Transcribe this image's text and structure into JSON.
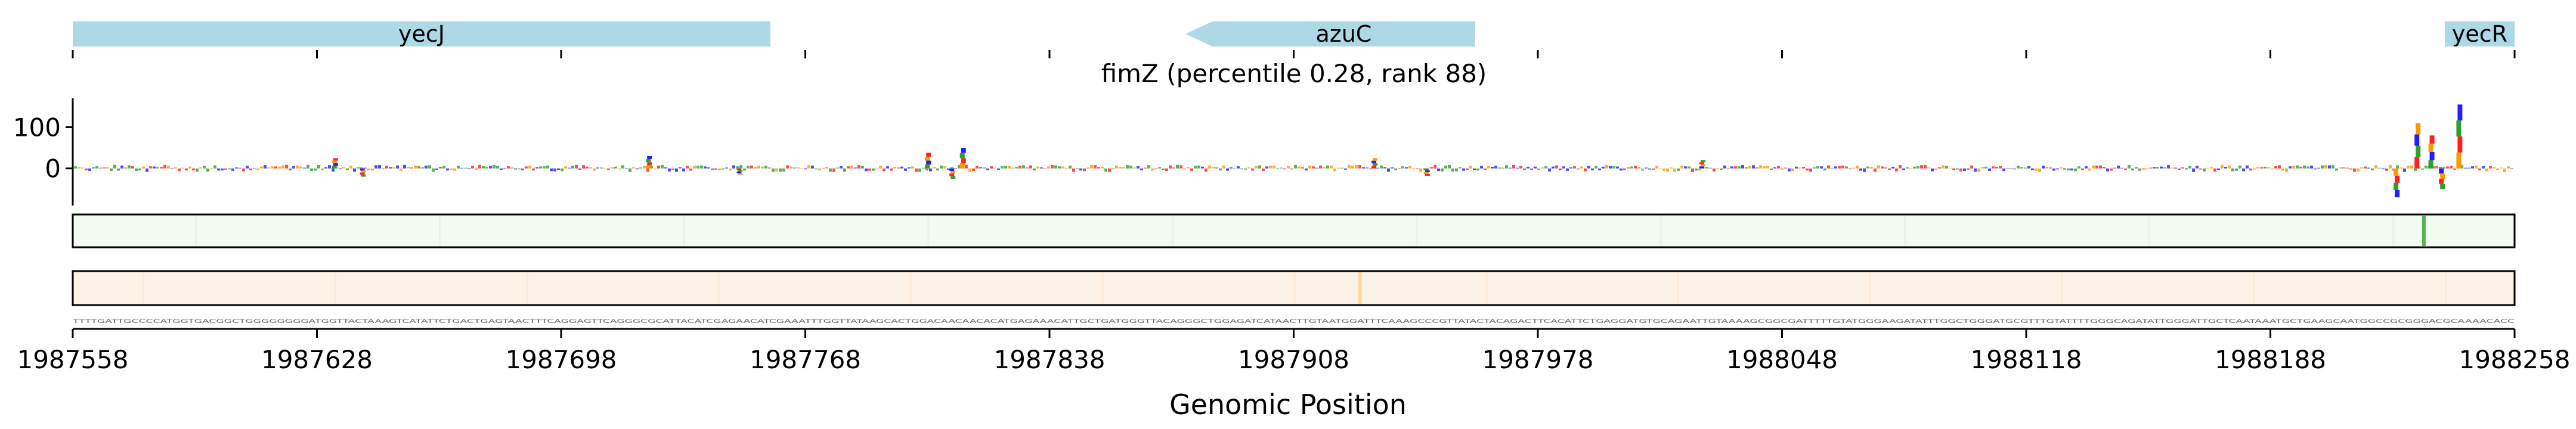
{
  "title": "fimZ (percentile 0.28, rank 88)",
  "xlabel": "Genomic Position",
  "colors": {
    "gene": "#add8e6",
    "track_green": "#f2fbf0",
    "track_orange": "#fdf2e6",
    "A": "#2ca02c",
    "C": "#1f1fff",
    "G": "#ff9900",
    "T": "#ff2020"
  },
  "chart_data": {
    "type": "area",
    "title": "fimZ (percentile 0.28, rank 88)",
    "xlabel": "Genomic Position",
    "xlim": [
      1987558,
      1988258
    ],
    "x_ticks": [
      1987558,
      1987628,
      1987698,
      1987768,
      1987838,
      1987908,
      1987978,
      1988048,
      1988118,
      1988188,
      1988258
    ],
    "x_tick_labels": [
      "1987558",
      "1987628",
      "1987698",
      "1987768",
      "1987838",
      "1987908",
      "1987978",
      "1988048",
      "1988118",
      "1988188",
      "1988258"
    ],
    "ylim": [
      -90,
      170
    ],
    "y_ticks": [
      0,
      100
    ],
    "y_tick_labels": [
      "0",
      "100"
    ],
    "genes": [
      {
        "name": "yecJ",
        "start": 1987558,
        "end": 1987758,
        "strand": "+"
      },
      {
        "name": "azuC",
        "start": 1987877,
        "end": 1987960,
        "strand": "-"
      },
      {
        "name": "yecR",
        "start": 1988238,
        "end": 1988258,
        "strand": "+"
      }
    ],
    "attribution_peaks": [
      {
        "x": 1987633,
        "value": 25
      },
      {
        "x": 1987641,
        "value": -20
      },
      {
        "x": 1987723,
        "value": 30
      },
      {
        "x": 1987749,
        "value": -15
      },
      {
        "x": 1987803,
        "value": 38
      },
      {
        "x": 1987810,
        "value": -25
      },
      {
        "x": 1987813,
        "value": 50
      },
      {
        "x": 1987931,
        "value": 25
      },
      {
        "x": 1987946,
        "value": -18
      },
      {
        "x": 1988025,
        "value": 20
      },
      {
        "x": 1988224,
        "value": -70
      },
      {
        "x": 1988230,
        "value": 110
      },
      {
        "x": 1988234,
        "value": 80
      },
      {
        "x": 1988237,
        "value": -50
      },
      {
        "x": 1988242,
        "value": 155
      }
    ],
    "green_track_highlight": {
      "x": 1988232,
      "value": 0.8
    },
    "orange_track_highlight": {
      "x": 1987927,
      "value": 0.3
    }
  },
  "sequence": "TTTTGATTGCCCCATGGTGACGGCTGGGGGGGGATGGTTACTAAAGTCATATTCTGACTGAGTAACTTTCAGGAGTTCAGGGCGCATTACATCGAGAACATCGAAATTTGGTTATAAGCACTGGACAACAACACATGAGAAACATTGCTGATGGGTTACAGGGCTGGAGATCATAACTTGTAATGGATTTCAAAGCCCGTTATACTACAGACTTCACATTCTGAGGATGTGCAGAATTGTAAAAGCGGCGATTTTTGTATGGGAAGATATTTGGCTGGGATGCGTTTGTATTTTGGGCAGATATTGGGATTGCTCAATAAATGCTGAAGCAATGGCCGCGGGACGCAAAACACC"
}
